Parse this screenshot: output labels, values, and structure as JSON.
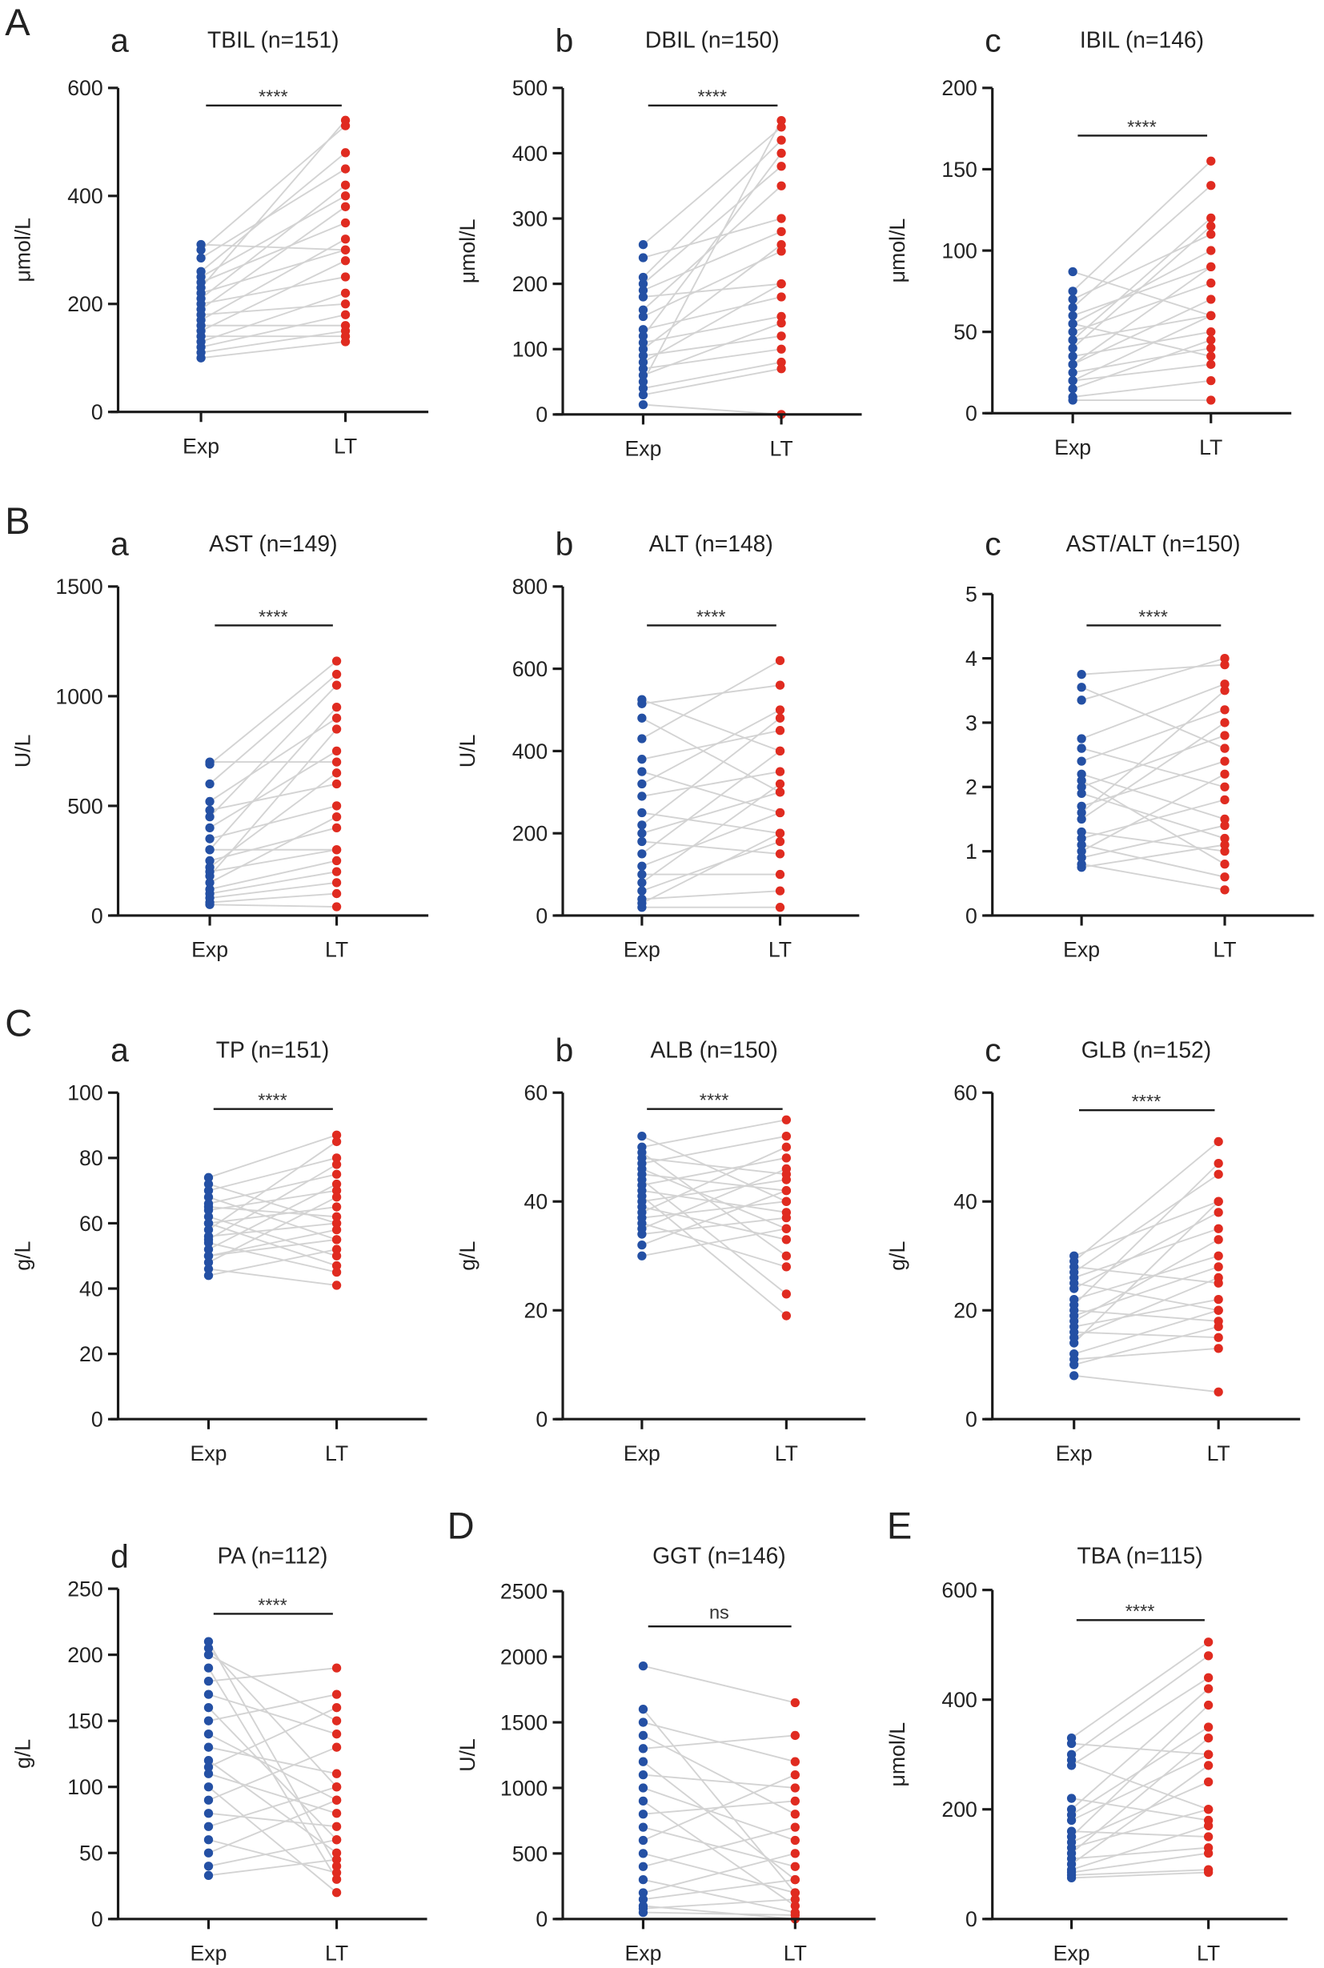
{
  "colors": {
    "exp": "#2450a4",
    "lt": "#e02b20",
    "line": "#d3d3d3",
    "axis": "#1a1a1a"
  },
  "chart_data": [
    {
      "type": "scatter",
      "section": "A",
      "sub": "a",
      "title": "TBIL (n=151)",
      "ylabel": "μmol/L",
      "categories": [
        "Exp",
        "LT"
      ],
      "sig": "****",
      "ylim": [
        0,
        600
      ],
      "yticks": [
        0,
        200,
        400,
        600
      ],
      "exp_range": [
        100,
        310
      ],
      "lt_range": [
        130,
        540
      ],
      "pairs": [
        [
          310,
          300
        ],
        [
          300,
          530
        ],
        [
          285,
          450
        ],
        [
          260,
          480
        ],
        [
          250,
          400
        ],
        [
          240,
          350
        ],
        [
          230,
          540
        ],
        [
          220,
          300
        ],
        [
          210,
          420
        ],
        [
          200,
          250
        ],
        [
          190,
          380
        ],
        [
          180,
          200
        ],
        [
          170,
          320
        ],
        [
          160,
          160
        ],
        [
          150,
          280
        ],
        [
          140,
          140
        ],
        [
          130,
          220
        ],
        [
          120,
          180
        ],
        [
          110,
          150
        ],
        [
          100,
          130
        ]
      ]
    },
    {
      "type": "scatter",
      "section": "",
      "sub": "b",
      "title": "DBIL (n=150)",
      "ylabel": "μmol/L",
      "categories": [
        "Exp",
        "LT"
      ],
      "sig": "****",
      "ylim": [
        0,
        500
      ],
      "yticks": [
        0,
        100,
        200,
        300,
        400,
        500
      ],
      "exp_range": [
        15,
        260
      ],
      "lt_range": [
        0,
        450
      ],
      "pairs": [
        [
          260,
          440
        ],
        [
          240,
          300
        ],
        [
          210,
          420
        ],
        [
          200,
          380
        ],
        [
          190,
          280
        ],
        [
          180,
          200
        ],
        [
          160,
          350
        ],
        [
          150,
          250
        ],
        [
          130,
          180
        ],
        [
          120,
          400
        ],
        [
          110,
          150
        ],
        [
          100,
          260
        ],
        [
          90,
          120
        ],
        [
          80,
          200
        ],
        [
          70,
          100
        ],
        [
          60,
          140
        ],
        [
          40,
          80
        ],
        [
          30,
          70
        ],
        [
          15,
          0
        ],
        [
          50,
          450
        ]
      ]
    },
    {
      "type": "scatter",
      "section": "",
      "sub": "c",
      "title": "IBIL (n=146)",
      "ylabel": "μmol/L",
      "categories": [
        "Exp",
        "LT"
      ],
      "sig": "****",
      "ylim": [
        0,
        200
      ],
      "yticks": [
        0,
        50,
        100,
        150,
        200
      ],
      "exp_range": [
        8,
        87
      ],
      "lt_range": [
        8,
        155
      ],
      "pairs": [
        [
          87,
          60
        ],
        [
          75,
          155
        ],
        [
          70,
          110
        ],
        [
          65,
          140
        ],
        [
          60,
          90
        ],
        [
          55,
          100
        ],
        [
          50,
          80
        ],
        [
          45,
          60
        ],
        [
          40,
          115
        ],
        [
          35,
          50
        ],
        [
          30,
          70
        ],
        [
          25,
          40
        ],
        [
          20,
          30
        ],
        [
          15,
          45
        ],
        [
          10,
          20
        ],
        [
          8,
          8
        ],
        [
          45,
          120
        ],
        [
          55,
          35
        ],
        [
          30,
          90
        ],
        [
          20,
          60
        ]
      ]
    },
    {
      "type": "scatter",
      "section": "B",
      "sub": "a",
      "title": "AST (n=149)",
      "ylabel": "U/L",
      "categories": [
        "Exp",
        "LT"
      ],
      "sig": "****",
      "ylim": [
        0,
        1500
      ],
      "yticks": [
        0,
        500,
        1000,
        1500
      ],
      "exp_range": [
        50,
        700
      ],
      "lt_range": [
        40,
        1160
      ],
      "pairs": [
        [
          700,
          700
        ],
        [
          690,
          1160
        ],
        [
          600,
          1100
        ],
        [
          520,
          900
        ],
        [
          480,
          600
        ],
        [
          450,
          1050
        ],
        [
          400,
          750
        ],
        [
          350,
          500
        ],
        [
          300,
          950
        ],
        [
          250,
          400
        ],
        [
          220,
          650
        ],
        [
          200,
          300
        ],
        [
          150,
          450
        ],
        [
          120,
          250
        ],
        [
          100,
          200
        ],
        [
          80,
          150
        ],
        [
          60,
          100
        ],
        [
          50,
          40
        ],
        [
          300,
          300
        ],
        [
          180,
          850
        ]
      ]
    },
    {
      "type": "scatter",
      "section": "",
      "sub": "b",
      "title": "ALT (n=148)",
      "ylabel": "U/L",
      "categories": [
        "Exp",
        "LT"
      ],
      "sig": "****",
      "ylim": [
        0,
        800
      ],
      "yticks": [
        0,
        200,
        400,
        600,
        800
      ],
      "exp_range": [
        20,
        525
      ],
      "lt_range": [
        20,
        620
      ],
      "pairs": [
        [
          525,
          400
        ],
        [
          515,
          560
        ],
        [
          480,
          300
        ],
        [
          430,
          620
        ],
        [
          380,
          450
        ],
        [
          350,
          250
        ],
        [
          320,
          500
        ],
        [
          290,
          350
        ],
        [
          250,
          200
        ],
        [
          220,
          480
        ],
        [
          200,
          300
        ],
        [
          180,
          150
        ],
        [
          150,
          400
        ],
        [
          120,
          250
        ],
        [
          100,
          100
        ],
        [
          80,
          320
        ],
        [
          60,
          180
        ],
        [
          40,
          60
        ],
        [
          20,
          20
        ],
        [
          30,
          200
        ]
      ]
    },
    {
      "type": "scatter",
      "section": "",
      "sub": "c",
      "title": "AST/ALT (n=150)",
      "ylabel": "",
      "categories": [
        "Exp",
        "LT"
      ],
      "sig": "****",
      "ylim": [
        0,
        5
      ],
      "yticks": [
        0,
        1,
        2,
        3,
        4,
        5
      ],
      "exp_range": [
        0.75,
        3.75
      ],
      "lt_range": [
        0.4,
        4.0
      ],
      "pairs": [
        [
          3.75,
          3.9
        ],
        [
          3.55,
          2.6
        ],
        [
          3.35,
          4.0
        ],
        [
          2.75,
          3.6
        ],
        [
          2.6,
          2.0
        ],
        [
          2.4,
          3.2
        ],
        [
          2.2,
          1.5
        ],
        [
          2.0,
          2.8
        ],
        [
          1.9,
          1.2
        ],
        [
          1.7,
          2.4
        ],
        [
          1.5,
          3.0
        ],
        [
          1.3,
          1.0
        ],
        [
          1.2,
          1.8
        ],
        [
          1.1,
          0.6
        ],
        [
          1.0,
          2.2
        ],
        [
          0.9,
          1.4
        ],
        [
          0.8,
          0.4
        ],
        [
          0.75,
          1.1
        ],
        [
          1.6,
          3.5
        ],
        [
          2.1,
          0.8
        ]
      ]
    },
    {
      "type": "scatter",
      "section": "C",
      "sub": "a",
      "title": "TP (n=151)",
      "ylabel": "g/L",
      "categories": [
        "Exp",
        "LT"
      ],
      "sig": "****",
      "ylim": [
        0,
        100
      ],
      "yticks": [
        0,
        20,
        40,
        60,
        80,
        100
      ],
      "exp_range": [
        44,
        74
      ],
      "lt_range": [
        41,
        87
      ],
      "pairs": [
        [
          74,
          87
        ],
        [
          72,
          60
        ],
        [
          70,
          80
        ],
        [
          68,
          55
        ],
        [
          66,
          75
        ],
        [
          64,
          70
        ],
        [
          62,
          50
        ],
        [
          60,
          65
        ],
        [
          58,
          85
        ],
        [
          56,
          60
        ],
        [
          54,
          45
        ],
        [
          52,
          72
        ],
        [
          50,
          58
        ],
        [
          48,
          68
        ],
        [
          46,
          41
        ],
        [
          44,
          52
        ],
        [
          60,
          47
        ],
        [
          55,
          78
        ],
        [
          65,
          62
        ],
        [
          50,
          55
        ]
      ]
    },
    {
      "type": "scatter",
      "section": "",
      "sub": "b",
      "title": "ALB (n=150)",
      "ylabel": "g/L",
      "categories": [
        "Exp",
        "LT"
      ],
      "sig": "****",
      "ylim": [
        0,
        60
      ],
      "yticks": [
        0,
        20,
        40,
        60
      ],
      "exp_range": [
        30,
        52
      ],
      "lt_range": [
        19,
        55
      ],
      "pairs": [
        [
          52,
          40
        ],
        [
          50,
          55
        ],
        [
          49,
          30
        ],
        [
          48,
          45
        ],
        [
          47,
          52
        ],
        [
          46,
          35
        ],
        [
          45,
          42
        ],
        [
          44,
          23
        ],
        [
          43,
          48
        ],
        [
          42,
          38
        ],
        [
          41,
          19
        ],
        [
          40,
          44
        ],
        [
          39,
          33
        ],
        [
          38,
          50
        ],
        [
          37,
          40
        ],
        [
          36,
          28
        ],
        [
          35,
          46
        ],
        [
          34,
          37
        ],
        [
          32,
          42
        ],
        [
          30,
          35
        ]
      ]
    },
    {
      "type": "scatter",
      "section": "",
      "sub": "c",
      "title": "GLB (n=152)",
      "ylabel": "g/L",
      "categories": [
        "Exp",
        "LT"
      ],
      "sig": "****",
      "ylim": [
        0,
        60
      ],
      "yticks": [
        0,
        20,
        40,
        60
      ],
      "exp_range": [
        8,
        30
      ],
      "lt_range": [
        5,
        51
      ],
      "pairs": [
        [
          30,
          40
        ],
        [
          29,
          51
        ],
        [
          28,
          25
        ],
        [
          27,
          45
        ],
        [
          26,
          35
        ],
        [
          25,
          20
        ],
        [
          24,
          38
        ],
        [
          22,
          30
        ],
        [
          21,
          47
        ],
        [
          20,
          18
        ],
        [
          19,
          28
        ],
        [
          18,
          33
        ],
        [
          17,
          22
        ],
        [
          16,
          15
        ],
        [
          15,
          26
        ],
        [
          14,
          40
        ],
        [
          12,
          20
        ],
        [
          11,
          13
        ],
        [
          10,
          17
        ],
        [
          8,
          5
        ]
      ]
    },
    {
      "type": "scatter",
      "section": "",
      "sub": "d",
      "title": "PA (n=112)",
      "ylabel": "g/L",
      "categories": [
        "Exp",
        "LT"
      ],
      "sig": "****",
      "ylim": [
        0,
        250
      ],
      "yticks": [
        0,
        50,
        100,
        150,
        200,
        250
      ],
      "exp_range": [
        33,
        210
      ],
      "lt_range": [
        20,
        190
      ],
      "pairs": [
        [
          210,
          40
        ],
        [
          205,
          100
        ],
        [
          200,
          150
        ],
        [
          190,
          30
        ],
        [
          180,
          190
        ],
        [
          170,
          140
        ],
        [
          160,
          60
        ],
        [
          150,
          170
        ],
        [
          140,
          90
        ],
        [
          130,
          110
        ],
        [
          120,
          50
        ],
        [
          115,
          160
        ],
        [
          110,
          80
        ],
        [
          100,
          20
        ],
        [
          90,
          130
        ],
        [
          80,
          70
        ],
        [
          70,
          100
        ],
        [
          60,
          35
        ],
        [
          50,
          90
        ],
        [
          40,
          60
        ],
        [
          33,
          45
        ]
      ]
    },
    {
      "type": "scatter",
      "section": "D",
      "sub": "",
      "title": "GGT (n=146)",
      "ylabel": "U/L",
      "categories": [
        "Exp",
        "LT"
      ],
      "sig": "ns",
      "ylim": [
        0,
        2500
      ],
      "yticks": [
        0,
        500,
        1000,
        1500,
        2000,
        2500
      ],
      "exp_range": [
        50,
        1930
      ],
      "lt_range": [
        0,
        1650
      ],
      "pairs": [
        [
          1930,
          1650
        ],
        [
          1600,
          200
        ],
        [
          1500,
          1200
        ],
        [
          1400,
          800
        ],
        [
          1300,
          1400
        ],
        [
          1200,
          300
        ],
        [
          1100,
          1000
        ],
        [
          1000,
          600
        ],
        [
          900,
          100
        ],
        [
          800,
          900
        ],
        [
          700,
          400
        ],
        [
          600,
          1100
        ],
        [
          500,
          200
        ],
        [
          400,
          700
        ],
        [
          300,
          50
        ],
        [
          200,
          500
        ],
        [
          150,
          300
        ],
        [
          100,
          0
        ],
        [
          80,
          150
        ],
        [
          50,
          30
        ]
      ]
    },
    {
      "type": "scatter",
      "section": "E",
      "sub": "",
      "title": "TBA (n=115)",
      "ylabel": "μmol/L",
      "categories": [
        "Exp",
        "LT"
      ],
      "sig": "****",
      "ylim": [
        0,
        600
      ],
      "yticks": [
        0,
        200,
        400,
        600
      ],
      "exp_range": [
        75,
        330
      ],
      "lt_range": [
        85,
        505
      ],
      "pairs": [
        [
          330,
          505
        ],
        [
          320,
          300
        ],
        [
          300,
          480
        ],
        [
          290,
          200
        ],
        [
          280,
          440
        ],
        [
          220,
          180
        ],
        [
          200,
          420
        ],
        [
          190,
          350
        ],
        [
          180,
          300
        ],
        [
          160,
          150
        ],
        [
          150,
          390
        ],
        [
          140,
          250
        ],
        [
          130,
          200
        ],
        [
          120,
          330
        ],
        [
          110,
          130
        ],
        [
          100,
          280
        ],
        [
          90,
          170
        ],
        [
          85,
          120
        ],
        [
          80,
          90
        ],
        [
          75,
          85
        ]
      ]
    }
  ]
}
